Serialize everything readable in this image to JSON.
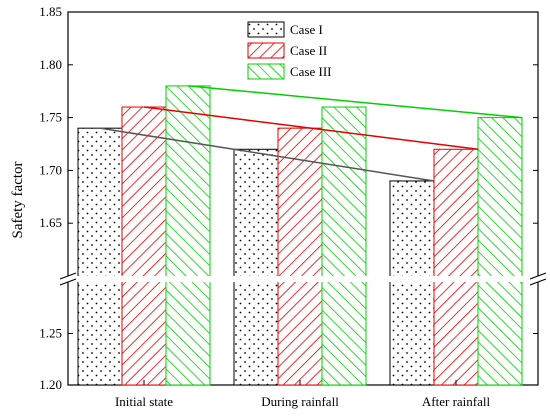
{
  "chart_data": {
    "type": "bar",
    "ylabel": "Safety factor",
    "xlabel": "",
    "categories": [
      "Initial state",
      "During rainfall",
      "After rainfall"
    ],
    "series": [
      {
        "name": "Case I",
        "values": [
          1.74,
          1.72,
          1.69
        ],
        "color": "#000000",
        "pattern": "dots"
      },
      {
        "name": "Case II",
        "values": [
          1.76,
          1.74,
          1.72
        ],
        "color": "#e60000",
        "pattern": "diagonal-up"
      },
      {
        "name": "Case III",
        "values": [
          1.78,
          1.76,
          1.75
        ],
        "color": "#00d000",
        "pattern": "diagonal-down"
      }
    ],
    "axis_break": {
      "lower_range": [
        1.2,
        1.3
      ],
      "upper_range": [
        1.6,
        1.85
      ]
    },
    "yticks_lower": [
      "1.20",
      "1.25"
    ],
    "yticks_upper": [
      "1.65",
      "1.70",
      "1.75",
      "1.80",
      "1.85"
    ],
    "trend_lines": true,
    "legend_position": "top-center",
    "grid": false
  }
}
